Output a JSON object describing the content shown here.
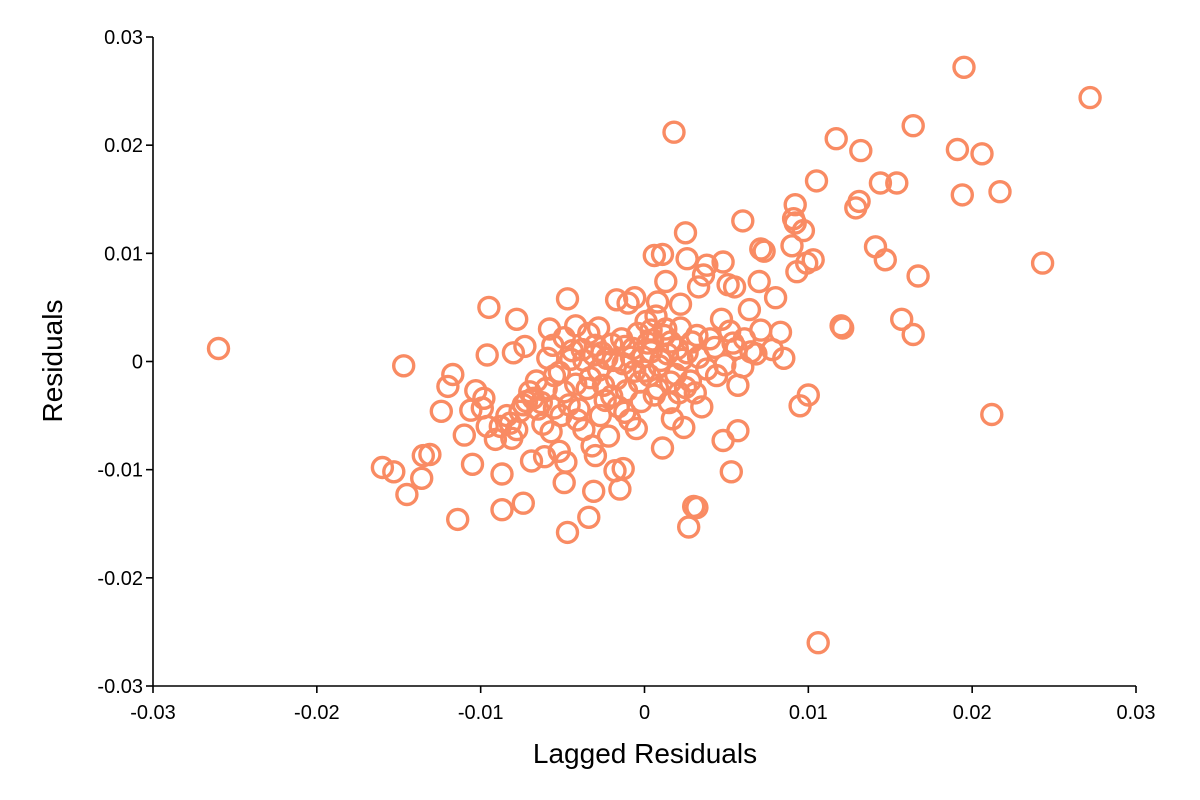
{
  "chart_data": {
    "type": "scatter",
    "title": "",
    "xlabel": "Lagged Residuals",
    "ylabel": "Residuals",
    "xlim": [
      -0.03,
      0.03
    ],
    "ylim": [
      -0.03,
      0.03
    ],
    "xticks": [
      "-0.03",
      "-0.02",
      "-0.01",
      "0",
      "0.01",
      "0.02",
      "0.03"
    ],
    "yticks": [
      "-0.03",
      "-0.02",
      "-0.01",
      "0",
      "0.01",
      "0.02",
      "0.03"
    ],
    "grid": false,
    "marker": "open-circle",
    "color": "#F98B63",
    "series": [
      {
        "points": [
          [
            -0.026,
            0.0012
          ],
          [
            0.0195,
            0.0272
          ],
          [
            0.0272,
            0.0244
          ],
          [
            0.0018,
            0.0212
          ],
          [
            0.0164,
            0.0218
          ],
          [
            0.0117,
            0.0206
          ],
          [
            0.0132,
            0.0195
          ],
          [
            0.0191,
            0.0196
          ],
          [
            0.0206,
            0.0192
          ],
          [
            0.0105,
            0.0167
          ],
          [
            0.0144,
            0.0165
          ],
          [
            0.0154,
            0.0165
          ],
          [
            0.0194,
            0.0154
          ],
          [
            0.0217,
            0.0157
          ],
          [
            0.0129,
            0.0142
          ],
          [
            0.0131,
            0.0148
          ],
          [
            0.0092,
            0.0145
          ],
          [
            0.0091,
            0.0132
          ],
          [
            0.0092,
            0.0128
          ],
          [
            0.006,
            0.013
          ],
          [
            0.0097,
            0.0121
          ],
          [
            0.0025,
            0.0119
          ],
          [
            0.0071,
            0.0104
          ],
          [
            0.0073,
            0.0102
          ],
          [
            0.009,
            0.0107
          ],
          [
            0.0141,
            0.0106
          ],
          [
            0.0147,
            0.0094
          ],
          [
            0.0103,
            0.0094
          ],
          [
            0.0099,
            0.0091
          ],
          [
            0.0243,
            0.0091
          ],
          [
            0.0167,
            0.0079
          ],
          [
            0.0093,
            0.0083
          ],
          [
            0.0006,
            0.0098
          ],
          [
            0.0011,
            0.0099
          ],
          [
            0.0026,
            0.0095
          ],
          [
            0.0038,
            0.0089
          ],
          [
            0.0048,
            0.0092
          ],
          [
            0.0036,
            0.008
          ],
          [
            0.0013,
            0.0074
          ],
          [
            0.0033,
            0.0069
          ],
          [
            0.0051,
            0.0071
          ],
          [
            0.0055,
            0.0069
          ],
          [
            0.007,
            0.0074
          ],
          [
            0.008,
            0.0059
          ],
          [
            0.0064,
            0.0048
          ],
          [
            0.0022,
            0.0053
          ],
          [
            0.0008,
            0.0055
          ],
          [
            -0.001,
            0.0054
          ],
          [
            -0.0006,
            0.0059
          ],
          [
            -0.0017,
            0.0057
          ],
          [
            -0.0047,
            0.0058
          ],
          [
            -0.0095,
            0.005
          ],
          [
            -0.0078,
            0.0039
          ],
          [
            -0.0058,
            0.003
          ],
          [
            -0.0042,
            0.0033
          ],
          [
            -0.0034,
            0.0026
          ],
          [
            -0.0028,
            0.0031
          ],
          [
            -0.0049,
            0.0022
          ],
          [
            -0.0056,
            0.0015
          ],
          [
            -0.0073,
            0.0014
          ],
          [
            -0.008,
            0.0008
          ],
          [
            -0.0096,
            0.0006
          ],
          [
            0.012,
            0.0033
          ],
          [
            0.0121,
            0.0031
          ],
          [
            0.0157,
            0.0039
          ],
          [
            0.0164,
            0.0025
          ],
          [
            0.0047,
            0.0039
          ],
          [
            0.0052,
            0.0028
          ],
          [
            0.0061,
            0.0021
          ],
          [
            0.0071,
            0.0029
          ],
          [
            0.0078,
            0.0011
          ],
          [
            0.0083,
            0.0027
          ],
          [
            0.0085,
            0.0003
          ],
          [
            0.0068,
            0.0007
          ],
          [
            0.0056,
            0.0012
          ],
          [
            0.0032,
            0.0024
          ],
          [
            0.0022,
            0.0031
          ],
          [
            0.0016,
            0.0018
          ],
          [
            0.0005,
            0.002
          ],
          [
            -0.0004,
            0.0026
          ],
          [
            -0.0012,
            0.0014
          ],
          [
            -0.002,
            0.0016
          ],
          [
            -0.0026,
            0.0008
          ],
          [
            -0.0031,
            0.0006
          ],
          [
            -0.0038,
            0.0011
          ],
          [
            -0.0045,
            0.0002
          ],
          [
            -0.0052,
            -0.001
          ],
          [
            -0.006,
            -0.0025
          ],
          [
            -0.0068,
            -0.0034
          ],
          [
            -0.0074,
            -0.004
          ],
          [
            -0.0082,
            -0.0057
          ],
          [
            -0.0088,
            -0.006
          ],
          [
            -0.0098,
            -0.0034
          ],
          [
            -0.0103,
            -0.0027
          ],
          [
            -0.0106,
            -0.0045
          ],
          [
            -0.0117,
            -0.0012
          ],
          [
            -0.012,
            -0.0023
          ],
          [
            -0.0124,
            -0.0046
          ],
          [
            -0.011,
            -0.0068
          ],
          [
            -0.0105,
            -0.0095
          ],
          [
            -0.0147,
            -0.0004
          ],
          [
            -0.0153,
            -0.0102
          ],
          [
            -0.016,
            -0.0098
          ],
          [
            -0.0135,
            -0.0087
          ],
          [
            -0.0131,
            -0.0086
          ],
          [
            -0.0136,
            -0.0108
          ],
          [
            -0.0145,
            -0.0123
          ],
          [
            -0.0114,
            -0.0146
          ],
          [
            -0.0087,
            -0.0104
          ],
          [
            -0.0087,
            -0.0137
          ],
          [
            -0.0074,
            -0.0131
          ],
          [
            -0.0069,
            -0.0092
          ],
          [
            -0.0061,
            -0.0088
          ],
          [
            -0.0052,
            -0.0083
          ],
          [
            -0.0048,
            -0.0093
          ],
          [
            -0.0049,
            -0.0112
          ],
          [
            -0.0047,
            -0.0158
          ],
          [
            -0.0034,
            -0.0144
          ],
          [
            -0.0031,
            -0.012
          ],
          [
            -0.003,
            -0.0087
          ],
          [
            -0.0022,
            -0.0069
          ],
          [
            -0.0018,
            -0.0101
          ],
          [
            -0.0013,
            -0.0099
          ],
          [
            -0.0015,
            -0.0118
          ],
          [
            0.0011,
            -0.008
          ],
          [
            0.0027,
            -0.0153
          ],
          [
            0.003,
            -0.0134
          ],
          [
            0.0032,
            -0.0135
          ],
          [
            0.0053,
            -0.0102
          ],
          [
            0.0048,
            -0.0073
          ],
          [
            0.0057,
            -0.0064
          ],
          [
            0.0095,
            -0.0041
          ],
          [
            0.01,
            -0.0031
          ],
          [
            0.0212,
            -0.0049
          ],
          [
            0.0106,
            -0.026
          ],
          [
            0.0057,
            -0.0022
          ],
          [
            0.0044,
            -0.0013
          ],
          [
            0.0031,
            -0.0029
          ],
          [
            0.0024,
            -0.0061
          ],
          [
            0.0017,
            -0.0053
          ],
          [
            0.0008,
            -0.0025
          ],
          [
            -0.0002,
            -0.0037
          ],
          [
            -0.0005,
            -0.0062
          ],
          [
            -0.0012,
            -0.0047
          ],
          [
            -0.002,
            -0.0032
          ],
          [
            -0.0027,
            -0.005
          ],
          [
            -0.0032,
            -0.0078
          ],
          [
            -0.0037,
            -0.0063
          ],
          [
            -0.0041,
            -0.0054
          ],
          [
            -0.0046,
            -0.004
          ],
          [
            -0.0055,
            -0.0043
          ],
          [
            -0.0062,
            -0.0058
          ],
          [
            -0.0066,
            -0.0018
          ],
          [
            -0.007,
            -0.0028
          ],
          [
            -0.0076,
            -0.0046
          ],
          [
            -0.0081,
            -0.0071
          ],
          [
            -0.0096,
            -0.006
          ],
          [
            -0.0099,
            -0.0043
          ],
          [
            -0.0013,
            -0.0002
          ],
          [
            -0.0008,
            0.0004
          ],
          [
            0.0,
            -0.0009
          ],
          [
            0.0004,
            0.0009
          ],
          [
            0.0009,
            -0.0004
          ],
          [
            0.0014,
            0.0007
          ],
          [
            0.0019,
            -0.0012
          ],
          [
            0.0023,
            0.0002
          ],
          [
            0.0028,
            -0.0018
          ],
          [
            0.0033,
            0.0004
          ],
          [
            0.0038,
            -0.0007
          ],
          [
            0.0043,
            0.0013
          ],
          [
            0.0049,
            -0.0003
          ],
          [
            0.0054,
            0.0017
          ],
          [
            0.006,
            -0.0005
          ],
          [
            0.0065,
            0.0009
          ],
          [
            -0.0017,
            -0.0016
          ],
          [
            -0.0023,
            0.0003
          ],
          [
            -0.0028,
            -0.0008
          ],
          [
            -0.0033,
            -0.0015
          ],
          [
            -0.0037,
            0.0001
          ],
          [
            -0.0042,
            -0.0021
          ],
          [
            -0.0049,
            -0.0028
          ],
          [
            -0.0055,
            -0.0013
          ],
          [
            -0.0059,
            0.0003
          ],
          [
            -0.0063,
            -0.0038
          ],
          [
            -0.0003,
            -0.0019
          ],
          [
            -0.0007,
            0.0012
          ],
          [
            -0.0011,
            -0.0027
          ],
          [
            0.0002,
            0.0017
          ],
          [
            0.0006,
            -0.0031
          ],
          [
            0.0012,
            0.0024
          ],
          [
            0.0015,
            -0.0038
          ],
          [
            0.002,
            0.0012
          ],
          [
            0.0025,
            -0.0024
          ],
          [
            0.0029,
            0.0018
          ],
          [
            0.0035,
            -0.0042
          ],
          [
            0.004,
            0.0021
          ],
          [
            -0.0009,
            -0.0054
          ],
          [
            -0.0016,
            -0.0042
          ],
          [
            -0.0024,
            -0.0036
          ],
          [
            -0.003,
            0.0015
          ],
          [
            -0.0035,
            -0.0025
          ],
          [
            -0.004,
            -0.0044
          ],
          [
            -0.0044,
            0.001
          ],
          [
            -0.0051,
            -0.005
          ],
          [
            -0.0057,
            -0.0065
          ],
          [
            -0.0065,
            -0.0044
          ],
          [
            -0.0072,
            -0.0037
          ],
          [
            -0.0078,
            -0.0063
          ],
          [
            -0.0084,
            -0.005
          ],
          [
            -0.0091,
            -0.0072
          ],
          [
            0.0001,
            0.0037
          ],
          [
            0.0007,
            0.0042
          ],
          [
            0.0013,
            0.003
          ],
          [
            -0.0001,
            0.0004
          ],
          [
            0.0003,
            -0.0013
          ],
          [
            -0.0006,
            -0.0009
          ],
          [
            0.001,
            0.0001
          ],
          [
            -0.0019,
            0.0001
          ],
          [
            -0.0025,
            -0.0022
          ],
          [
            0.0016,
            -0.0019
          ],
          [
            0.0021,
            -0.0029
          ],
          [
            0.0026,
            0.0008
          ],
          [
            0.0004,
            0.0029
          ],
          [
            -0.0014,
            0.0021
          ]
        ]
      }
    ]
  }
}
